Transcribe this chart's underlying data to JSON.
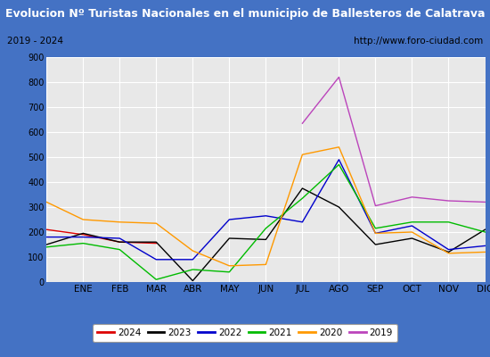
{
  "title": "Evolucion Nº Turistas Nacionales en el municipio de Ballesteros de Calatrava",
  "subtitle_left": "2019 - 2024",
  "subtitle_right": "http://www.foro-ciudad.com",
  "months": [
    "",
    "ENE",
    "FEB",
    "MAR",
    "ABR",
    "MAY",
    "JUN",
    "JUL",
    "AGO",
    "SEP",
    "OCT",
    "NOV",
    "DIC"
  ],
  "ylim": [
    0,
    900
  ],
  "yticks": [
    0,
    100,
    200,
    300,
    400,
    500,
    600,
    700,
    800,
    900
  ],
  "series": {
    "2024": {
      "color": "#dd0000",
      "data": [
        210,
        190,
        160,
        155,
        null,
        null,
        null,
        null,
        null,
        null,
        null,
        null,
        null
      ]
    },
    "2023": {
      "color": "#000000",
      "data": [
        150,
        195,
        160,
        160,
        5,
        175,
        170,
        375,
        300,
        150,
        175,
        120,
        210
      ]
    },
    "2022": {
      "color": "#0000cc",
      "data": [
        180,
        180,
        175,
        90,
        90,
        250,
        265,
        240,
        490,
        195,
        225,
        130,
        145
      ]
    },
    "2021": {
      "color": "#00bb00",
      "data": [
        140,
        155,
        130,
        10,
        50,
        40,
        215,
        335,
        470,
        215,
        240,
        240,
        200
      ]
    },
    "2020": {
      "color": "#ff9900",
      "data": [
        320,
        250,
        240,
        235,
        125,
        65,
        70,
        510,
        540,
        195,
        200,
        115,
        120
      ]
    },
    "2019": {
      "color": "#bb44bb",
      "data": [
        null,
        null,
        null,
        null,
        null,
        null,
        null,
        635,
        820,
        305,
        340,
        325,
        320
      ]
    }
  },
  "title_bg_color": "#4472c4",
  "title_text_color": "#ffffff",
  "subtitle_bg_color": "#f5f5f5",
  "plot_bg_color": "#e8e8e8",
  "grid_color": "#ffffff",
  "border_color": "#4472c4",
  "legend_years": [
    "2024",
    "2023",
    "2022",
    "2021",
    "2020",
    "2019"
  ]
}
